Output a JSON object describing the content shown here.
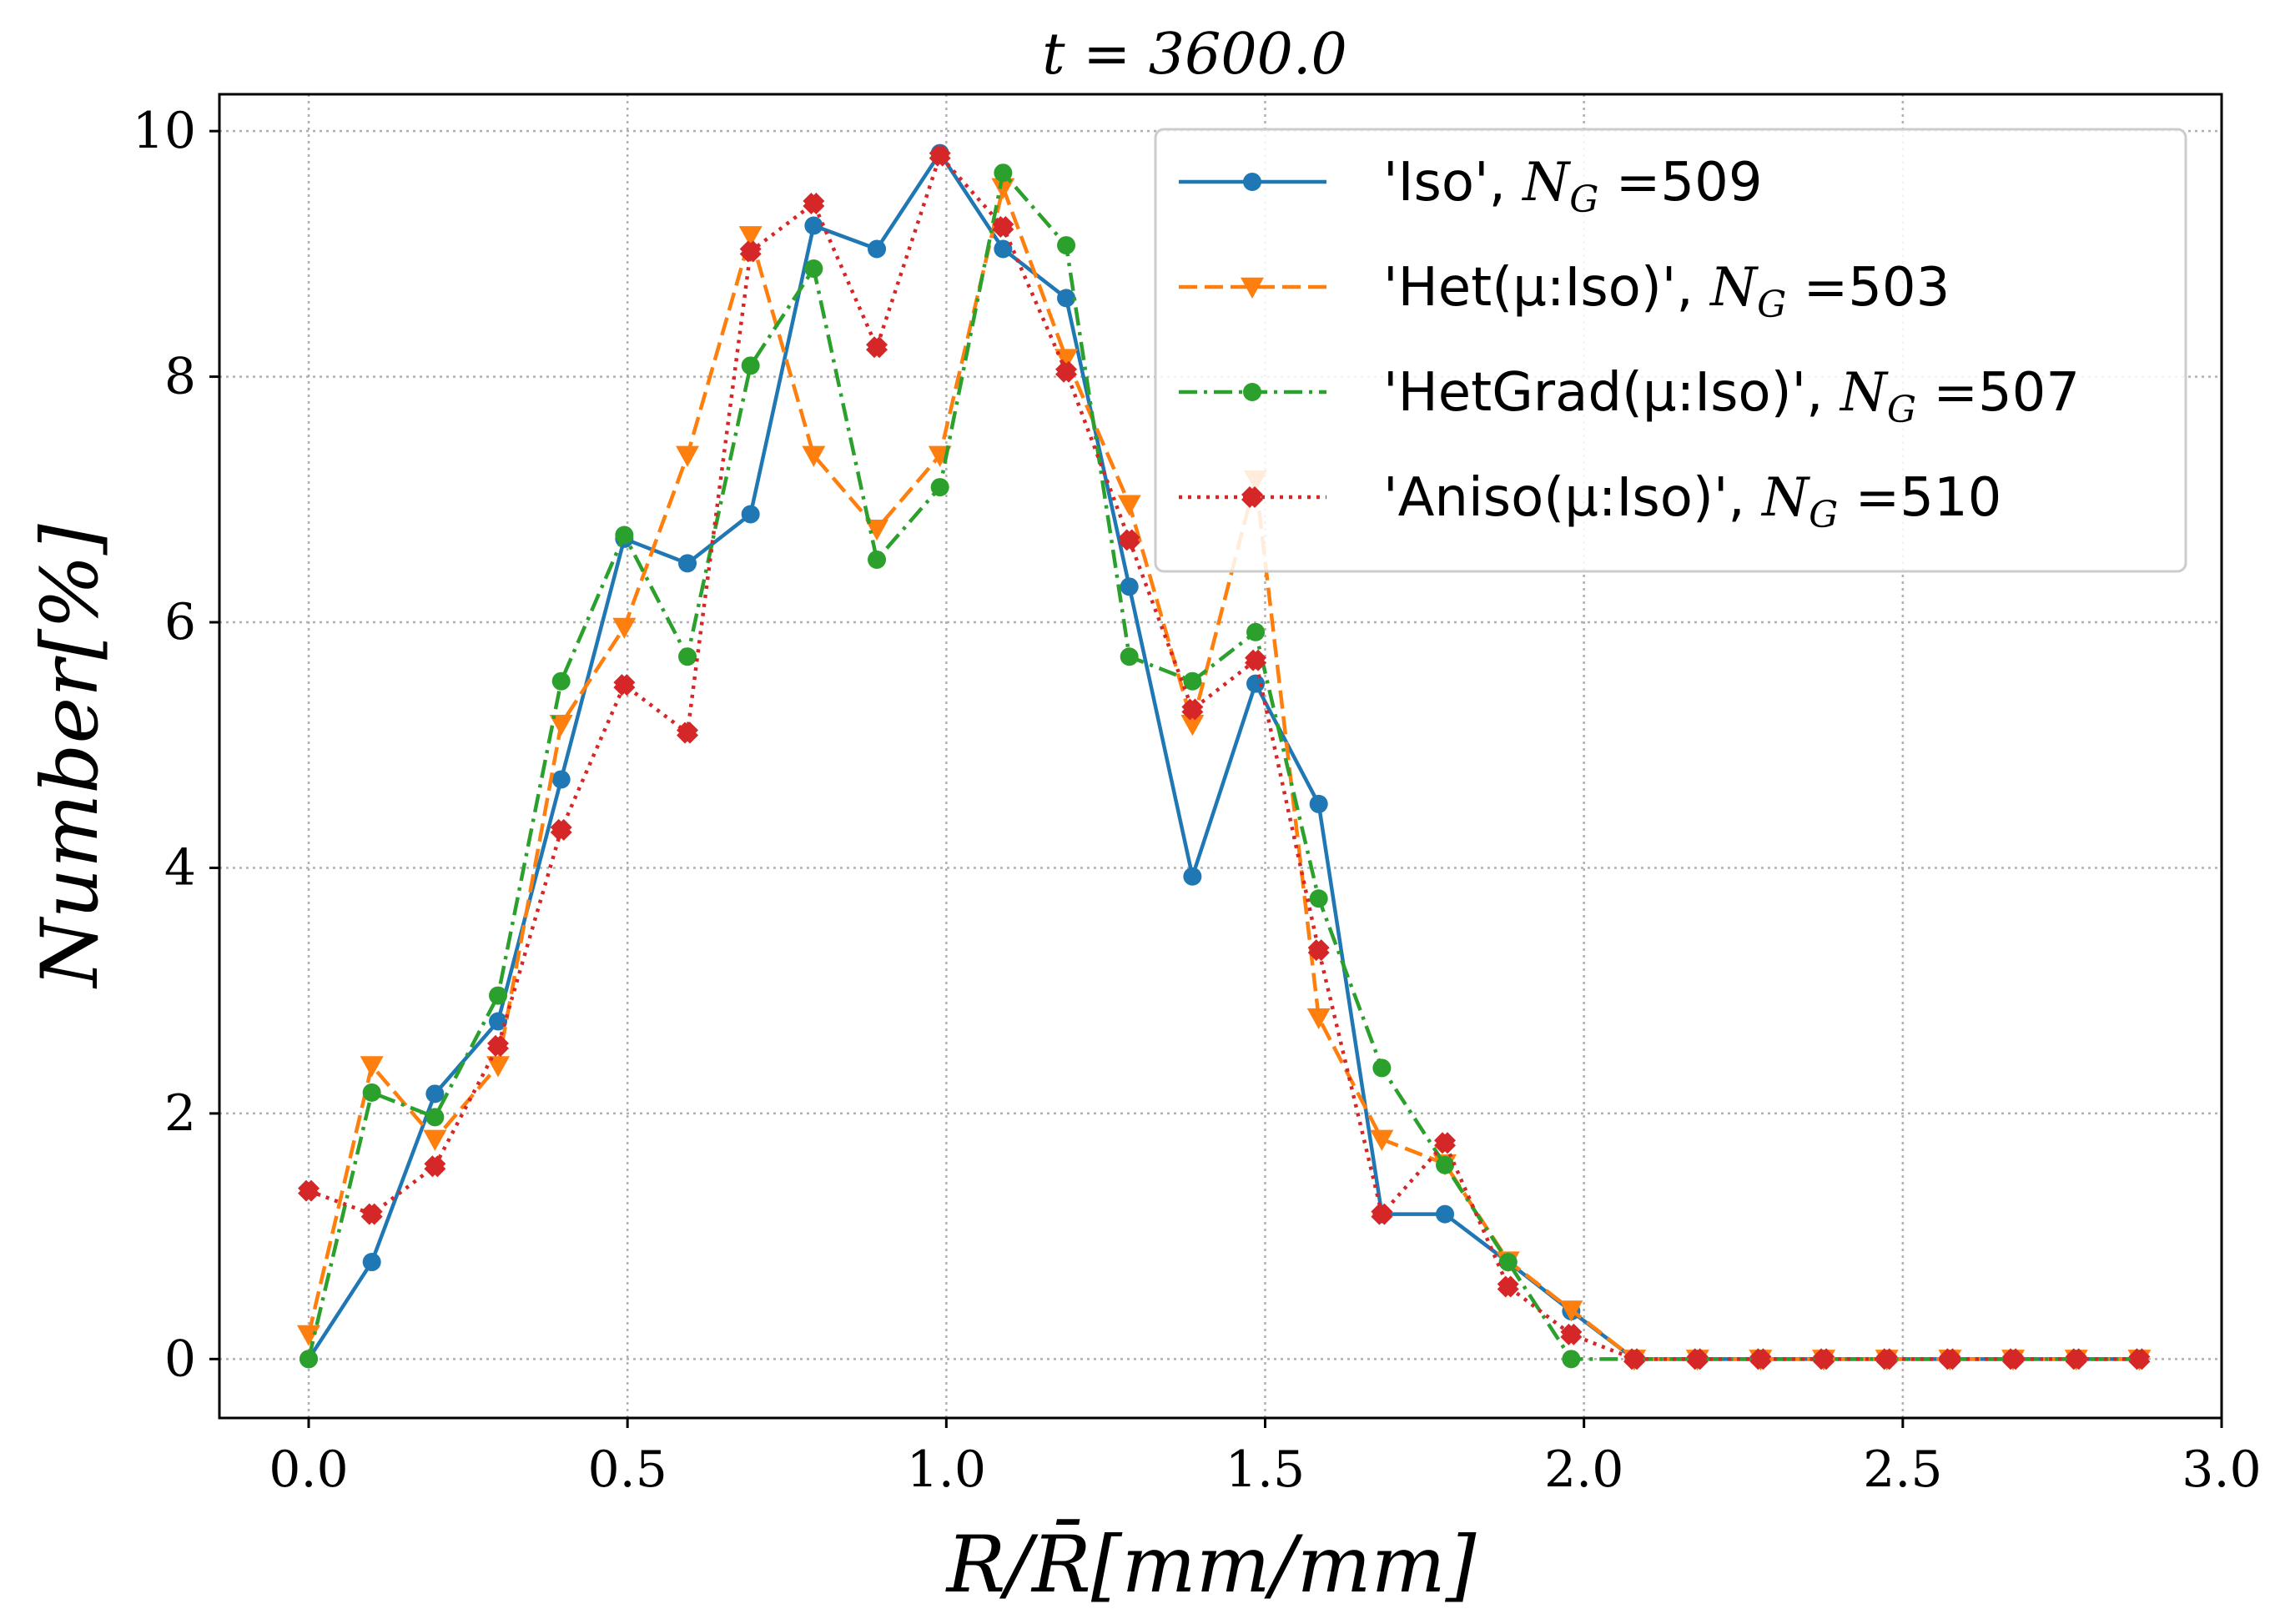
{
  "chart_data": {
    "type": "line",
    "title": "t = 3600.0",
    "xlabel": "R/R̄[mm/mm]",
    "ylabel": "Number[%]",
    "xlim": [
      -0.14,
      3.0
    ],
    "ylim": [
      -0.48,
      10.3
    ],
    "xticks": [
      0.0,
      0.5,
      1.0,
      1.5,
      2.0,
      2.5,
      3.0
    ],
    "xtick_labels": [
      "0.0",
      "0.5",
      "1.0",
      "1.5",
      "2.0",
      "2.5",
      "3.0"
    ],
    "yticks": [
      0,
      2,
      4,
      6,
      8,
      10
    ],
    "ytick_labels": [
      "0",
      "2",
      "4",
      "6",
      "8",
      "10"
    ],
    "grid": true,
    "legend_position": "top-right",
    "x": [
      0.0,
      0.099,
      0.198,
      0.297,
      0.396,
      0.495,
      0.594,
      0.693,
      0.792,
      0.891,
      0.99,
      1.089,
      1.188,
      1.287,
      1.386,
      1.485,
      1.584,
      1.683,
      1.782,
      1.881,
      1.98,
      2.079,
      2.178,
      2.277,
      2.376,
      2.475,
      2.574,
      2.673,
      2.772,
      2.871
    ],
    "series": [
      {
        "name": "'Iso', N_G =509",
        "legend_text": "'Iso', ",
        "legend_value": "509",
        "color": "#1f77b4",
        "linestyle": "solid",
        "marker": "circle",
        "values": [
          0.0,
          0.79,
          2.16,
          2.75,
          4.72,
          6.68,
          6.48,
          6.88,
          9.23,
          9.04,
          9.82,
          9.04,
          8.64,
          6.29,
          3.93,
          5.5,
          4.52,
          1.18,
          1.18,
          0.79,
          0.39,
          0.0,
          0.0,
          0.0,
          0.0,
          0.0,
          0.0,
          0.0,
          0.0,
          0.0
        ]
      },
      {
        "name": "'Het(μ:Iso)', N_G =503",
        "legend_text": "'Het(μ:Iso)', ",
        "legend_value": "503",
        "color": "#ff7f0e",
        "linestyle": "dashed",
        "marker": "triangle-down",
        "values": [
          0.2,
          2.39,
          1.79,
          2.39,
          5.17,
          5.96,
          7.36,
          9.15,
          7.36,
          6.76,
          7.36,
          9.54,
          8.15,
          6.96,
          5.17,
          7.16,
          2.78,
          1.79,
          1.59,
          0.8,
          0.4,
          0.0,
          0.0,
          0.0,
          0.0,
          0.0,
          0.0,
          0.0,
          0.0,
          0.0
        ]
      },
      {
        "name": "'HetGrad(μ:Iso)', N_G =507",
        "legend_text": "'HetGrad(μ:Iso)', ",
        "legend_value": "507",
        "color": "#2ca02c",
        "linestyle": "dashdot",
        "marker": "circle",
        "values": [
          0.0,
          2.17,
          1.97,
          2.96,
          5.52,
          6.71,
          5.72,
          8.09,
          8.88,
          6.51,
          7.1,
          9.66,
          9.07,
          5.72,
          5.52,
          5.92,
          3.75,
          2.37,
          1.58,
          0.79,
          0.0,
          0.0,
          0.0,
          0.0,
          0.0,
          0.0,
          0.0,
          0.0,
          0.0,
          0.0
        ]
      },
      {
        "name": "'Aniso(μ:Iso)', N_G =510",
        "legend_text": "'Aniso(μ:Iso)', ",
        "legend_value": "510",
        "color": "#d62728",
        "linestyle": "dotted",
        "marker": "x-filled",
        "values": [
          1.37,
          1.18,
          1.57,
          2.55,
          4.31,
          5.49,
          5.1,
          9.02,
          9.41,
          8.24,
          9.8,
          9.22,
          8.04,
          6.67,
          5.29,
          5.69,
          3.33,
          1.18,
          1.76,
          0.59,
          0.2,
          0.0,
          0.0,
          0.0,
          0.0,
          0.0,
          0.0,
          0.0,
          0.0,
          0.0
        ]
      }
    ]
  }
}
